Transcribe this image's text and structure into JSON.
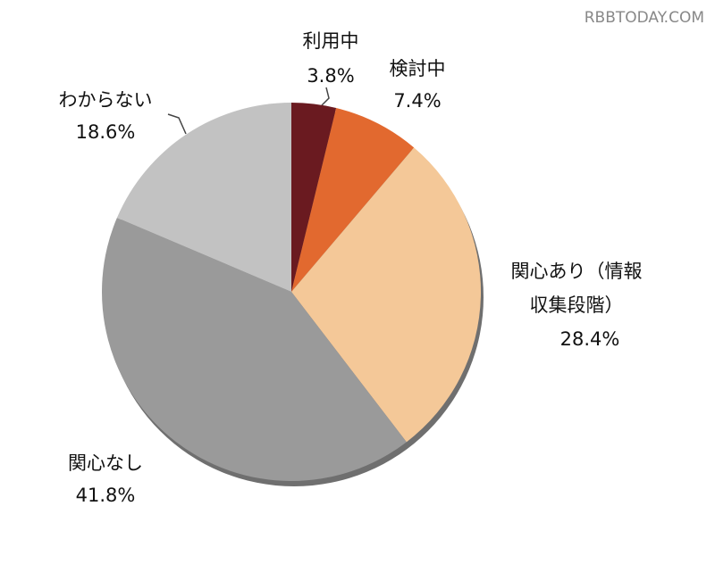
{
  "chart_data": {
    "type": "pie",
    "watermark": "RBBTODAY.COM",
    "categories": [
      "利用中",
      "検討中",
      "関心あり（情報\n収集段階）",
      "関心なし",
      "わからない"
    ],
    "values": [
      3.8,
      7.4,
      28.4,
      41.8,
      18.6
    ],
    "value_labels": [
      "3.8%",
      "7.4%",
      "28.4%",
      "41.8%",
      "18.6%"
    ],
    "colors": [
      "#6a1a20",
      "#e2692f",
      "#f4c898",
      "#9a9a9a",
      "#c2c2c2"
    ]
  }
}
